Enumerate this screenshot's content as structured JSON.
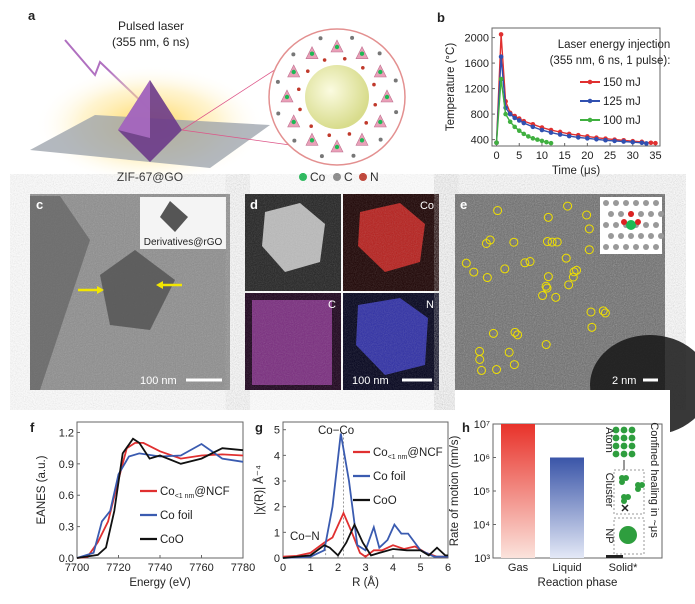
{
  "panels": {
    "a": {
      "label": "a",
      "laser_title": "Pulsed laser",
      "laser_params": "(355 nm, 6 ns)",
      "sample": "ZIF-67@GO",
      "legend": [
        {
          "text": "Co",
          "color": "#1db954"
        },
        {
          "text": "C",
          "color": "#888888"
        },
        {
          "text": "N",
          "color": "#c0392b"
        }
      ]
    },
    "c": {
      "label": "c",
      "inset": "Derivatives@rGO",
      "scale": "100 nm"
    },
    "d": {
      "label": "d",
      "maps": [
        "Co",
        "C",
        "N"
      ],
      "scale": "100 nm"
    },
    "e": {
      "label": "e",
      "scale": "2 nm"
    },
    "f": {
      "label": "f"
    },
    "g": {
      "label": "g",
      "annot_coco": "Co−Co",
      "annot_con": "Co−N"
    },
    "h": {
      "label": "h",
      "schematic": {
        "atom": "Atom",
        "cluster": "Cluster",
        "np": "NP",
        "side": "Confined healing in ~μs"
      }
    }
  },
  "chart_data": [
    {
      "id": "b",
      "type": "line",
      "title": "Laser energy injection",
      "subtitle": "(355 nm, 6 ns, 1 pulse):",
      "xlabel": "Time (μs)",
      "ylabel": "Temperature (°C)",
      "xlim": [
        -1,
        36
      ],
      "ylim": [
        300,
        2150
      ],
      "xticks": [
        0,
        5,
        10,
        15,
        20,
        25,
        30,
        35
      ],
      "yticks": [
        400,
        800,
        1200,
        1600,
        2000
      ],
      "legend": "top-right",
      "series": [
        {
          "name": "150 mJ",
          "color": "#e03030",
          "x": [
            0,
            1,
            2,
            3,
            4,
            5,
            6,
            8,
            10,
            12,
            14,
            16,
            18,
            20,
            22,
            24,
            26,
            28,
            30,
            32,
            34,
            35
          ],
          "y": [
            350,
            2050,
            1000,
            820,
            770,
            730,
            690,
            640,
            590,
            550,
            520,
            490,
            470,
            450,
            430,
            415,
            400,
            390,
            375,
            365,
            350,
            345
          ]
        },
        {
          "name": "125 mJ",
          "color": "#3050b0",
          "x": [
            0,
            1,
            2,
            3,
            4,
            5,
            6,
            8,
            10,
            12,
            14,
            16,
            18,
            20,
            22,
            24,
            26,
            28,
            30,
            32,
            33
          ],
          "y": [
            350,
            1700,
            900,
            800,
            740,
            700,
            660,
            600,
            550,
            510,
            480,
            455,
            435,
            420,
            405,
            390,
            380,
            370,
            360,
            350,
            340
          ]
        },
        {
          "name": "100 mJ",
          "color": "#40b040",
          "x": [
            0,
            1,
            2,
            3,
            4,
            5,
            6,
            7,
            8,
            9,
            10,
            11,
            12
          ],
          "y": [
            350,
            1350,
            800,
            680,
            600,
            540,
            490,
            450,
            420,
            400,
            380,
            360,
            345
          ]
        }
      ]
    },
    {
      "id": "f",
      "type": "line",
      "xlabel": "Energy (eV)",
      "ylabel": "EANES (a.u.)",
      "xlim": [
        7700,
        7780
      ],
      "ylim": [
        0,
        1.3
      ],
      "xticks": [
        7700,
        7720,
        7740,
        7760,
        7780
      ],
      "yticks": [
        0.0,
        0.3,
        0.6,
        0.9,
        1.2
      ],
      "ytick_labels": [
        "0.0",
        "0.3",
        "0.6",
        "0.9",
        "1.2"
      ],
      "legend": "center-right",
      "series": [
        {
          "name": "Co",
          "name_sub": "<1 nm",
          "name_suffix": "@NCF",
          "color": "#e03030",
          "x": [
            7700,
            7705,
            7710,
            7715,
            7720,
            7724,
            7728,
            7732,
            7740,
            7750,
            7760,
            7770,
            7780
          ],
          "y": [
            0,
            0.01,
            0.15,
            0.35,
            0.75,
            1.05,
            1.1,
            1.1,
            1.02,
            0.95,
            0.98,
            0.99,
            0.98
          ]
        },
        {
          "name": "Co foil",
          "color": "#3a5bb0",
          "x": [
            7700,
            7708,
            7712,
            7716,
            7720,
            7725,
            7730,
            7740,
            7750,
            7760,
            7770,
            7780
          ],
          "y": [
            0,
            0.05,
            0.35,
            0.45,
            0.8,
            0.97,
            1.0,
            0.97,
            0.98,
            1.09,
            0.95,
            0.92
          ]
        },
        {
          "name": "CoO",
          "color": "#111111",
          "x": [
            7700,
            7710,
            7714,
            7718,
            7722,
            7727,
            7730,
            7735,
            7740,
            7750,
            7760,
            7770,
            7780
          ],
          "y": [
            0,
            0.03,
            0.1,
            0.45,
            1.0,
            1.14,
            1.1,
            0.95,
            0.98,
            0.9,
            0.95,
            1.05,
            1.03
          ]
        }
      ]
    },
    {
      "id": "g",
      "type": "line",
      "xlabel": "R (Å)",
      "ylabel": "|χ(R)| Å⁻⁴",
      "xlim": [
        0,
        6
      ],
      "ylim": [
        0,
        5.3
      ],
      "xticks": [
        0,
        1,
        2,
        3,
        4,
        5,
        6
      ],
      "yticks": [
        0,
        1,
        2,
        3,
        4,
        5
      ],
      "legend": "top-right",
      "series": [
        {
          "name": "Co",
          "name_sub": "<1 nm",
          "name_suffix": "@NCF",
          "color": "#e03030",
          "x": [
            0,
            0.5,
            1,
            1.5,
            1.8,
            2.2,
            2.5,
            2.8,
            3,
            3.3,
            3.6,
            4,
            4.4,
            4.8,
            5.2,
            5.6,
            6
          ],
          "y": [
            0.05,
            0.08,
            0.2,
            0.6,
            0.8,
            1.75,
            1.0,
            0.2,
            0.05,
            0.3,
            0.3,
            0.5,
            0.35,
            0.45,
            0.2,
            0.05,
            0.05
          ]
        },
        {
          "name": "Co foil",
          "color": "#3a5bb0",
          "x": [
            0,
            1,
            1.5,
            1.8,
            2.1,
            2.4,
            2.7,
            3,
            3.3,
            3.5,
            3.8,
            4.05,
            4.3,
            4.55,
            5,
            5.5,
            6
          ],
          "y": [
            0,
            0.05,
            0.3,
            2.0,
            4.85,
            3.0,
            0.5,
            0.3,
            1.2,
            0.4,
            0.7,
            1.3,
            0.95,
            0.95,
            0.3,
            0.05,
            0.05
          ]
        },
        {
          "name": "CoO",
          "color": "#111111",
          "x": [
            0,
            1,
            1.5,
            1.7,
            2,
            2.3,
            2.6,
            2.9,
            3.2,
            3.5,
            4,
            4.5,
            5,
            5.3,
            5.6,
            5.9,
            6
          ],
          "y": [
            0,
            0.1,
            0.5,
            0.4,
            0.1,
            0.6,
            1.3,
            0.6,
            0.1,
            0.2,
            0.35,
            0.3,
            0.3,
            0.1,
            0.4,
            0.1,
            0.1
          ]
        }
      ]
    },
    {
      "id": "h",
      "type": "bar",
      "xlabel": "Reaction phase",
      "ylabel": "Rate of motion (nm/s)",
      "yscale": "log",
      "ylim": [
        1000,
        10000000
      ],
      "yticks": [
        1000,
        10000,
        100000,
        1000000,
        10000000
      ],
      "ytick_labels": [
        "10³",
        "10⁴",
        "10⁵",
        "10⁶",
        "10⁷"
      ],
      "categories": [
        "Gas",
        "Liquid",
        "Solid*"
      ],
      "values": [
        10000000,
        1000000,
        1000
      ],
      "colors": [
        "#e8322a",
        "#3a55a8",
        "#222222"
      ]
    }
  ]
}
